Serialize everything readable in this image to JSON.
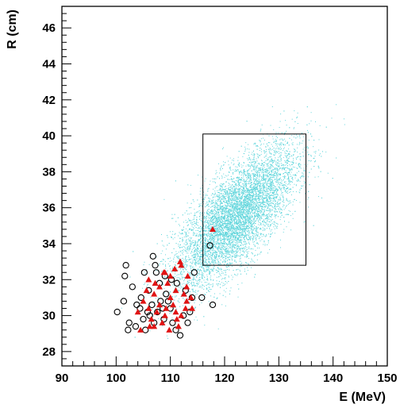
{
  "chart_data": {
    "type": "scatter",
    "title": "",
    "xlabel": "E (MeV)",
    "ylabel": "R (cm)",
    "xlim": [
      90,
      150
    ],
    "ylim": [
      27.2,
      47.2
    ],
    "x_ticks": [
      "90",
      "100",
      "110",
      "120",
      "130",
      "140",
      "150"
    ],
    "y_ticks": [
      "28",
      "30",
      "32",
      "34",
      "36",
      "38",
      "40",
      "42",
      "44",
      "46"
    ],
    "grid": false,
    "legend": "none",
    "selection_box": {
      "x": [
        116,
        135
      ],
      "y": [
        32.8,
        40.1
      ]
    },
    "colors": {
      "cloud": "#63d6dc",
      "triangles": "#e01414",
      "circles": "#000000"
    },
    "series": [
      {
        "marker": "dots",
        "description_cloud": {
          "x_range": [
            95,
            145
          ],
          "y_range": [
            27.5,
            42.5
          ],
          "center": [
            122,
            35.5
          ]
        },
        "points": [
          [
            121,
            35.5
          ],
          [
            124,
            36.5
          ],
          [
            119,
            34.5
          ],
          [
            126,
            37.2
          ],
          [
            122,
            35.0
          ],
          [
            118,
            34.0
          ],
          [
            125,
            36.0
          ],
          [
            128,
            37.5
          ],
          [
            120,
            35.8
          ],
          [
            123,
            34.8
          ],
          [
            117,
            33.6
          ],
          [
            127,
            38.0
          ],
          [
            122,
            36.8
          ],
          [
            119,
            33.2
          ],
          [
            130,
            38.6
          ],
          [
            121,
            34.2
          ],
          [
            116,
            32.8
          ],
          [
            124,
            35.4
          ],
          [
            126,
            35.8
          ],
          [
            120,
            37.0
          ],
          [
            113,
            31.8
          ],
          [
            115,
            32.6
          ],
          [
            129,
            39.2
          ],
          [
            131,
            37.8
          ],
          [
            118,
            35.6
          ],
          [
            123,
            38.4
          ],
          [
            125,
            34.6
          ],
          [
            112,
            31.2
          ],
          [
            114,
            33.0
          ],
          [
            127,
            36.4
          ]
        ]
      },
      {
        "marker": "triangle",
        "points": [
          [
            117.8,
            34.8
          ],
          [
            106,
            32.0
          ],
          [
            107,
            31.2
          ],
          [
            108,
            30.6
          ],
          [
            109,
            32.4
          ],
          [
            110,
            31.0
          ],
          [
            111,
            30.2
          ],
          [
            112,
            32.8
          ],
          [
            113,
            31.6
          ],
          [
            114,
            30.4
          ],
          [
            105,
            30.8
          ],
          [
            106.5,
            29.8
          ],
          [
            107.5,
            30.2
          ],
          [
            108.5,
            29.6
          ],
          [
            109.5,
            31.8
          ],
          [
            110.5,
            30.6
          ],
          [
            111.5,
            29.4
          ],
          [
            112.5,
            31.2
          ],
          [
            113.2,
            32.2
          ],
          [
            104,
            30.2
          ],
          [
            104.5,
            29.2
          ],
          [
            106,
            30.4
          ],
          [
            107,
            29.4
          ],
          [
            108,
            31.6
          ],
          [
            109,
            30.0
          ],
          [
            110,
            32.2
          ],
          [
            111,
            31.4
          ],
          [
            112,
            30.0
          ],
          [
            113,
            30.8
          ],
          [
            109.8,
            29.2
          ],
          [
            110.8,
            32.6
          ],
          [
            108.8,
            32.4
          ],
          [
            107.2,
            31.8
          ],
          [
            105.6,
            31.4
          ],
          [
            111.8,
            33.0
          ],
          [
            112.8,
            30.4
          ],
          [
            113.8,
            31.0
          ],
          [
            106.2,
            29.4
          ],
          [
            109.2,
            30.4
          ],
          [
            111.2,
            29.8
          ]
        ]
      },
      {
        "marker": "circle",
        "points": [
          [
            117.3,
            33.9
          ],
          [
            117.8,
            30.6
          ],
          [
            115.8,
            31.0
          ],
          [
            101.8,
            32.8
          ],
          [
            101.6,
            32.2
          ],
          [
            103,
            31.6
          ],
          [
            101.4,
            30.8
          ],
          [
            100.2,
            30.2
          ],
          [
            102.4,
            29.6
          ],
          [
            102.2,
            29.2
          ],
          [
            103.6,
            29.4
          ],
          [
            104.4,
            30.4
          ],
          [
            105,
            29.8
          ],
          [
            105.4,
            29.2
          ],
          [
            106,
            31.4
          ],
          [
            106.6,
            30.6
          ],
          [
            107,
            29.6
          ],
          [
            107.6,
            30.2
          ],
          [
            108.2,
            30.8
          ],
          [
            108.8,
            29.8
          ],
          [
            109.2,
            31.2
          ],
          [
            110,
            30.4
          ],
          [
            110.4,
            29.6
          ],
          [
            111,
            29.2
          ],
          [
            111.8,
            28.9
          ],
          [
            112.4,
            30.0
          ],
          [
            113.2,
            29.6
          ],
          [
            113.6,
            30.2
          ],
          [
            114,
            31.0
          ],
          [
            114.4,
            32.4
          ],
          [
            107.2,
            32.8
          ],
          [
            106.8,
            33.3
          ],
          [
            107.4,
            32.4
          ],
          [
            108,
            31.8
          ],
          [
            109,
            32.2
          ],
          [
            110.2,
            32.0
          ],
          [
            111.2,
            31.8
          ],
          [
            105.2,
            32.4
          ],
          [
            104.6,
            31.0
          ],
          [
            103.8,
            30.6
          ],
          [
            106.2,
            30.0
          ],
          [
            108.6,
            30.4
          ],
          [
            109.6,
            30.8
          ],
          [
            112.8,
            31.4
          ],
          [
            105.8,
            30.2
          ]
        ]
      }
    ]
  }
}
